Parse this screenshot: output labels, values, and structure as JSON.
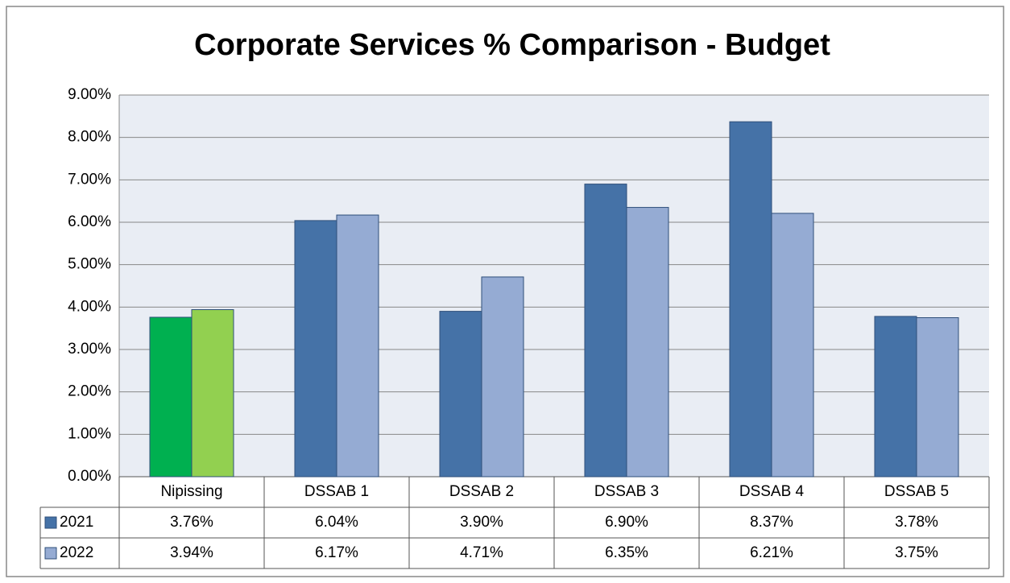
{
  "chart_data": {
    "type": "bar",
    "title": "Corporate Services % Comparison - Budget",
    "categories": [
      "Nipissing",
      "DSSAB 1",
      "DSSAB 2",
      "DSSAB 3",
      "DSSAB 4",
      "DSSAB 5"
    ],
    "series": [
      {
        "name": "2021",
        "color": "#4572a7",
        "colors": [
          "#00b050",
          "#4572a7",
          "#4572a7",
          "#4572a7",
          "#4572a7",
          "#4572a7"
        ],
        "values": [
          3.76,
          6.04,
          3.9,
          6.9,
          8.37,
          3.78
        ],
        "value_labels": [
          "3.76%",
          "6.04%",
          "3.90%",
          "6.90%",
          "8.37%",
          "3.78%"
        ]
      },
      {
        "name": "2022",
        "color": "#95abd3",
        "colors": [
          "#92d050",
          "#95abd3",
          "#95abd3",
          "#95abd3",
          "#95abd3",
          "#95abd3"
        ],
        "values": [
          3.94,
          6.17,
          4.71,
          6.35,
          6.21,
          3.75
        ],
        "value_labels": [
          "3.94%",
          "6.17%",
          "4.71%",
          "6.35%",
          "6.21%",
          "3.75%"
        ]
      }
    ],
    "ylim": [
      0,
      9
    ],
    "yticks": [
      {
        "value": 0,
        "label": "0.00%"
      },
      {
        "value": 1,
        "label": "1.00%"
      },
      {
        "value": 2,
        "label": "2.00%"
      },
      {
        "value": 3,
        "label": "3.00%"
      },
      {
        "value": 4,
        "label": "4.00%"
      },
      {
        "value": 5,
        "label": "5.00%"
      },
      {
        "value": 6,
        "label": "6.00%"
      },
      {
        "value": 7,
        "label": "7.00%"
      },
      {
        "value": 8,
        "label": "8.00%"
      },
      {
        "value": 9,
        "label": "9.00%"
      }
    ],
    "grid": true
  }
}
